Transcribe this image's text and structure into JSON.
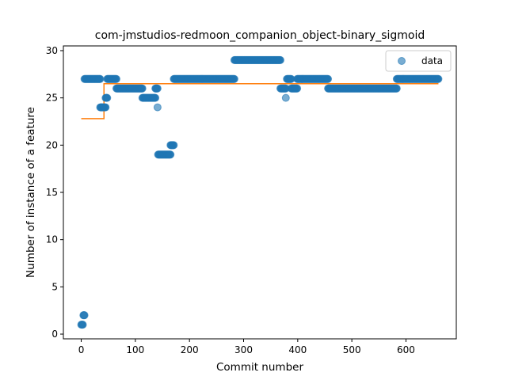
{
  "chart_data": {
    "type": "scatter",
    "title": "com-jmstudios-redmoon_companion_object-binary_sigmoid",
    "xlabel": "Commit number",
    "ylabel": "Number of instance of a feature",
    "xlim": [
      -33,
      693
    ],
    "ylim": [
      -0.5,
      30.5
    ],
    "xticks": [
      0,
      100,
      200,
      300,
      400,
      500,
      600
    ],
    "yticks": [
      0,
      5,
      10,
      15,
      20,
      25,
      30
    ],
    "legend": {
      "position": "top-right",
      "entries": [
        "data"
      ]
    },
    "colors": {
      "points": "#1f77b4",
      "fit": "#ff7f0e"
    },
    "series": [
      {
        "name": "data",
        "kind": "scatter",
        "segments": [
          {
            "x_start": 0,
            "x_end": 3,
            "y": 1
          },
          {
            "x_start": 4,
            "x_end": 6,
            "y": 2
          },
          {
            "x_start": 6,
            "x_end": 35,
            "y": 27
          },
          {
            "x_start": 35,
            "x_end": 45,
            "y": 24
          },
          {
            "x_start": 45,
            "x_end": 48,
            "y": 25
          },
          {
            "x_start": 48,
            "x_end": 65,
            "y": 27
          },
          {
            "x_start": 65,
            "x_end": 113,
            "y": 26
          },
          {
            "x_start": 113,
            "x_end": 137,
            "y": 25
          },
          {
            "x_start": 137,
            "x_end": 141,
            "y": 26
          },
          {
            "x_start": 141,
            "x_end": 141,
            "y": 24
          },
          {
            "x_start": 142,
            "x_end": 165,
            "y": 19
          },
          {
            "x_start": 165,
            "x_end": 171,
            "y": 20
          },
          {
            "x_start": 171,
            "x_end": 283,
            "y": 27
          },
          {
            "x_start": 283,
            "x_end": 368,
            "y": 29
          },
          {
            "x_start": 368,
            "x_end": 378,
            "y": 26
          },
          {
            "x_start": 378,
            "x_end": 378,
            "y": 25
          },
          {
            "x_start": 380,
            "x_end": 388,
            "y": 27
          },
          {
            "x_start": 388,
            "x_end": 399,
            "y": 26
          },
          {
            "x_start": 399,
            "x_end": 456,
            "y": 27
          },
          {
            "x_start": 456,
            "x_end": 583,
            "y": 26
          },
          {
            "x_start": 583,
            "x_end": 660,
            "y": 27
          }
        ]
      },
      {
        "name": "",
        "kind": "step",
        "points": [
          {
            "x": 0,
            "y": 22.8
          },
          {
            "x": 42,
            "y": 22.8
          },
          {
            "x": 42,
            "y": 26.5
          },
          {
            "x": 660,
            "y": 26.5
          }
        ]
      }
    ]
  }
}
